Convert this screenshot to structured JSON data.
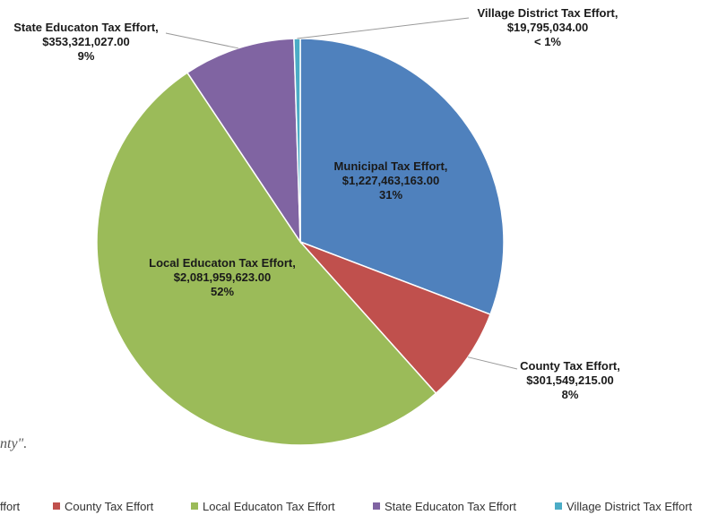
{
  "background_text": "nty\".",
  "legend_partial_first_label": "ffort",
  "chart_data": {
    "type": "pie",
    "title": "",
    "slices": [
      {
        "label": "Municipal Tax Effort",
        "value": 1227463163.0,
        "value_text": "$1,227,463,163.00",
        "percent_text": "31%",
        "color": "#4F81BD"
      },
      {
        "label": "County Tax Effort",
        "value": 301549215.0,
        "value_text": "$301,549,215.00",
        "percent_text": "8%",
        "color": "#C0504D"
      },
      {
        "label": "Local Educaton Tax Effort",
        "value": 2081959623.0,
        "value_text": "$2,081,959,623.00",
        "percent_text": "52%",
        "color": "#9BBB59"
      },
      {
        "label": "State Educaton Tax Effort",
        "value": 353321027.0,
        "value_text": "$353,321,027.00",
        "percent_text": "9%",
        "color": "#8064A2"
      },
      {
        "label": "Village District Tax Effort",
        "value": 19795034.0,
        "value_text": "$19,795,034.00",
        "percent_text": "< 1%",
        "color": "#4BACC6"
      }
    ],
    "legend": {
      "placement": "bottom",
      "entries": [
        "County Tax Effort",
        "Local Educaton Tax Effort",
        "State Educaton Tax Effort",
        "Village District Tax Effort"
      ]
    }
  }
}
